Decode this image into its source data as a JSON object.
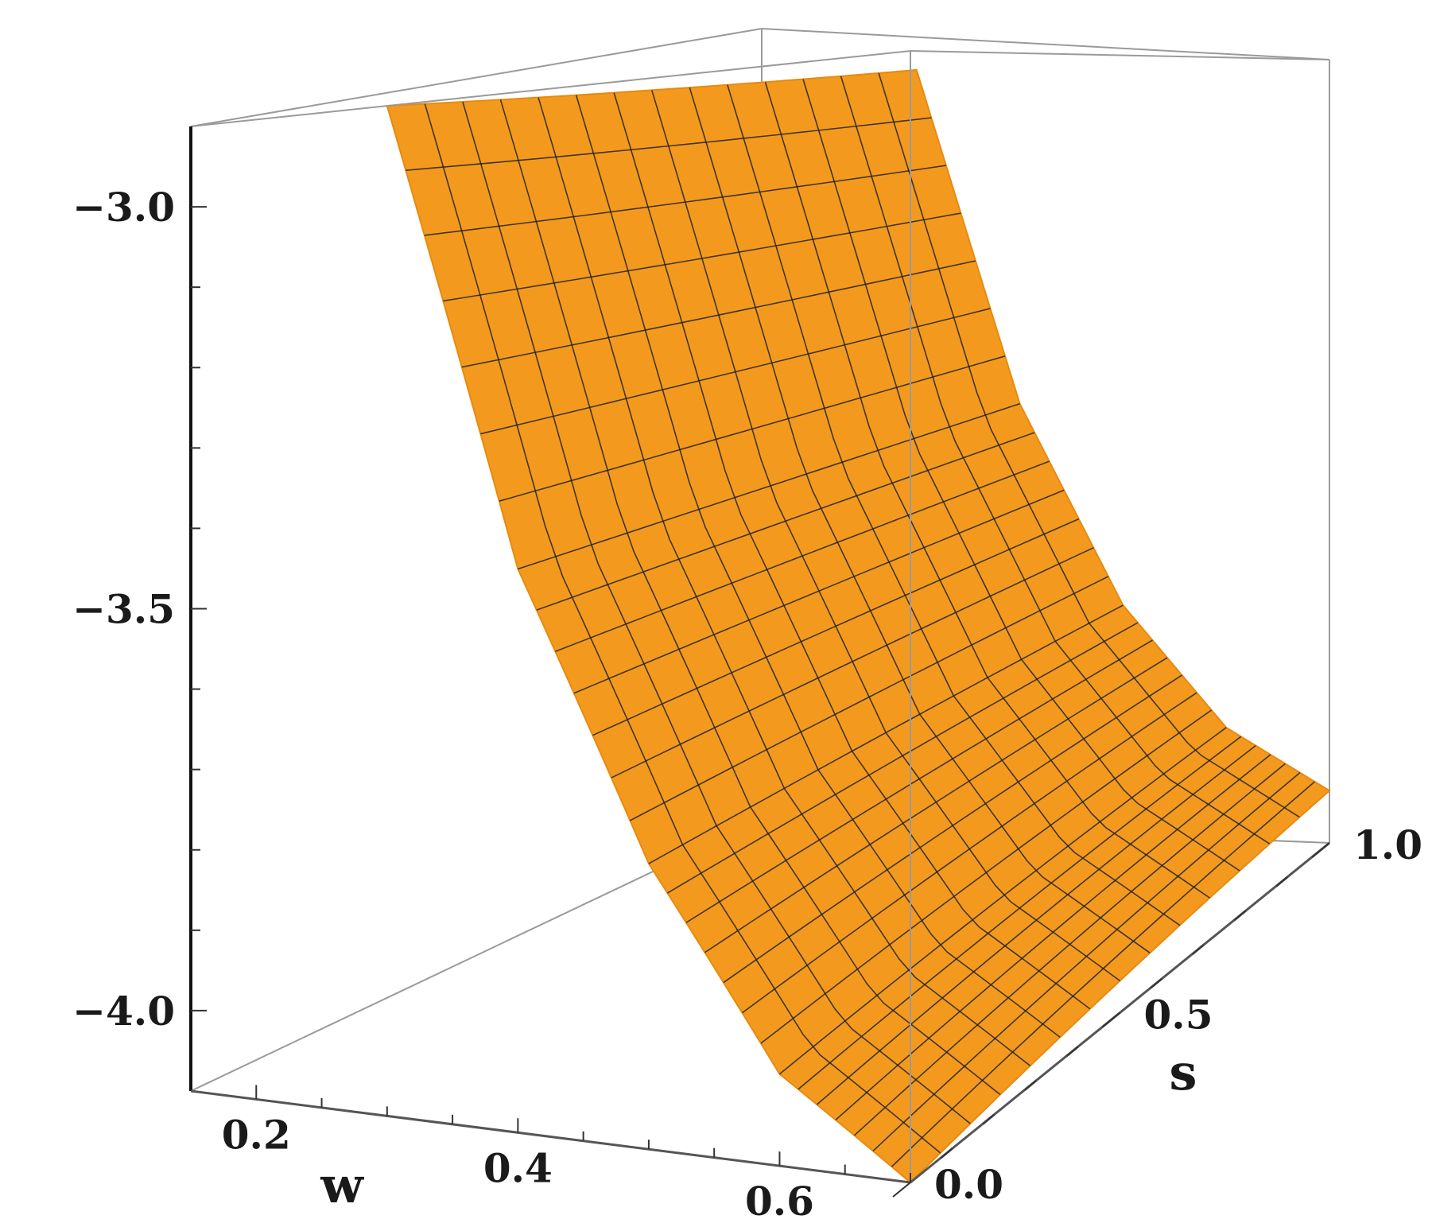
{
  "chart_data": {
    "type": "surface3d",
    "title": "",
    "xlabel": "w",
    "ylabel": "s",
    "zlabel": "",
    "xlim": [
      0.15,
      0.7
    ],
    "ylim": [
      0.0,
      1.0
    ],
    "zlim": [
      -4.1,
      -2.9
    ],
    "x_ticks": [
      {
        "value": 0.2,
        "label": "0.2"
      },
      {
        "value": 0.4,
        "label": "0.4"
      },
      {
        "value": 0.6,
        "label": "0.6"
      }
    ],
    "y_ticks": [
      {
        "value": 0.0,
        "label": "0.0"
      },
      {
        "value": 0.5,
        "label": "0.5"
      },
      {
        "value": 1.0,
        "label": "1.0"
      }
    ],
    "z_ticks": [
      {
        "value": -3.0,
        "label": "−3.0"
      },
      {
        "value": -3.5,
        "label": "−3.5"
      },
      {
        "value": -4.0,
        "label": "−4.0"
      }
    ],
    "surface": {
      "w_range": [
        0.3,
        0.7
      ],
      "s_range": [
        0.0,
        1.0
      ],
      "color": "#f39a1e",
      "mesh_color": "#222222",
      "w_samples": [
        0.3,
        0.4,
        0.5,
        0.6,
        0.7
      ],
      "z_at_s0": [
        -2.9,
        -3.45,
        -3.78,
        -4.0,
        -4.1
      ],
      "z_at_s1": [
        -2.95,
        -3.45,
        -3.75,
        -3.93,
        -4.02
      ]
    },
    "box": true,
    "grid": false,
    "legend": "none"
  }
}
